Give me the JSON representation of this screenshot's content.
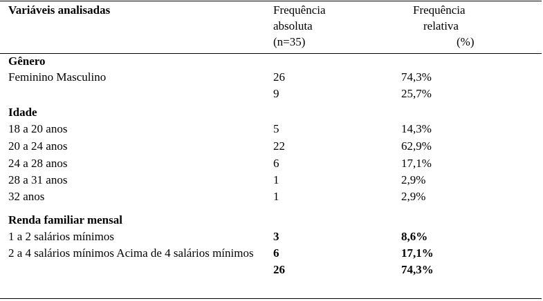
{
  "header": {
    "variables": "Variáveis analisadas",
    "absolute": [
      "Frequência",
      "absoluta",
      "(n=35)"
    ],
    "relative": [
      "Frequência",
      "relativa",
      "(%)"
    ]
  },
  "sections": [
    {
      "title": "Gênero",
      "rows": [
        {
          "label": "Feminino Masculino",
          "absolute": "26",
          "relative": "74,3%"
        },
        {
          "absolute": "9",
          "relative": "25,7%"
        }
      ]
    },
    {
      "title": "Idade",
      "rows": [
        {
          "label": "18 a 20 anos",
          "absolute": "5",
          "relative": "14,3%"
        },
        {
          "label": "20 a 24 anos",
          "absolute": "22",
          "relative": "62,9%"
        },
        {
          "label": "24 a 28 anos",
          "absolute": "6",
          "relative": "17,1%"
        },
        {
          "label": "28 a 31 anos",
          "absolute": "1",
          "relative": "2,9%"
        },
        {
          "label": "32 anos",
          "absolute": "1",
          "relative": "2,9%"
        }
      ]
    },
    {
      "title": "Renda familiar mensal",
      "rows": [
        {
          "label": "1 a 2 salários mínimos",
          "absolute": "3",
          "relative": "8,6%"
        },
        {
          "label": "2 a 4 salários mínimos Acima de 4 salários mínimos",
          "absolute": "6",
          "relative": "17,1%"
        },
        {
          "absolute": "26",
          "relative": "74,3%"
        }
      ]
    }
  ]
}
